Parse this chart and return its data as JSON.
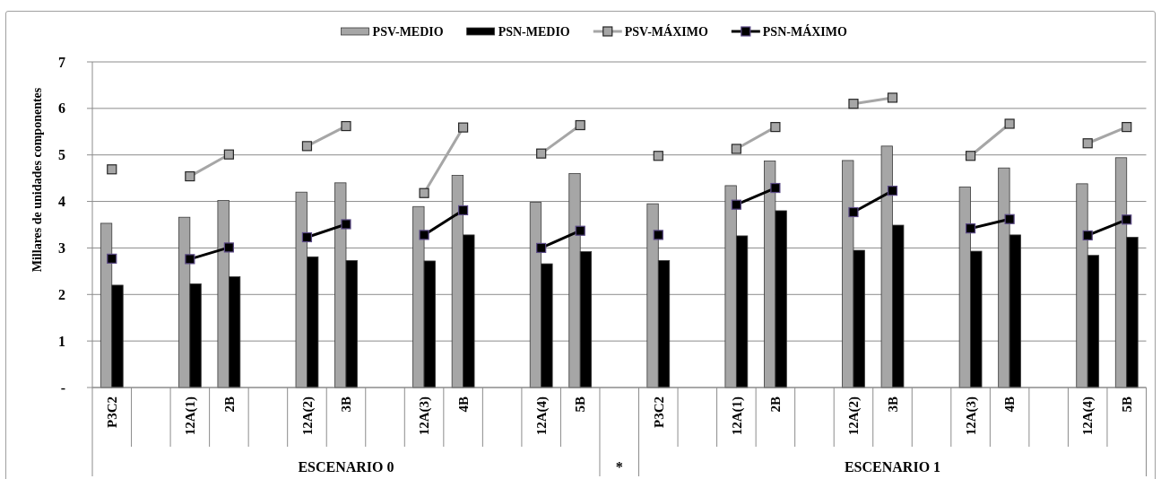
{
  "chart_data": {
    "type": "bar",
    "categories": [
      "P3C2",
      null,
      "12A(1)",
      "2B",
      null,
      "12A(2)",
      "3B",
      null,
      "12A(3)",
      "4B",
      null,
      "12A(4)",
      "5B",
      null,
      "P3C2",
      null,
      "12A(1)",
      "2B",
      null,
      "12A(2)",
      "3B",
      null,
      "12A(3)",
      "4B",
      null,
      "12A(4)",
      "5B"
    ],
    "series": [
      {
        "name": "PSV-MEDIO",
        "color": "#a6a6a6",
        "values": [
          3.53,
          null,
          3.66,
          4.02,
          null,
          4.2,
          4.4,
          null,
          3.89,
          4.56,
          null,
          3.98,
          4.6,
          null,
          3.95,
          null,
          4.34,
          4.87,
          null,
          4.88,
          5.19,
          null,
          4.31,
          4.72,
          null,
          4.38,
          4.94
        ]
      },
      {
        "name": "PSN-MEDIO",
        "color": "#000000",
        "values": [
          2.2,
          null,
          2.23,
          2.38,
          null,
          2.81,
          2.73,
          null,
          2.72,
          3.28,
          null,
          2.66,
          2.92,
          null,
          2.73,
          null,
          3.26,
          3.8,
          null,
          2.95,
          3.49,
          null,
          2.93,
          3.28,
          null,
          2.84,
          3.23
        ]
      },
      {
        "name": "PSV-MÁXIMO",
        "type": "line",
        "color": "#a6a6a6",
        "values": [
          4.69,
          null,
          4.54,
          5.01,
          null,
          5.19,
          5.62,
          null,
          4.18,
          5.59,
          null,
          5.03,
          5.64,
          null,
          4.98,
          null,
          5.13,
          5.6,
          null,
          6.1,
          6.23,
          null,
          4.98,
          5.67,
          null,
          5.25,
          5.6
        ]
      },
      {
        "name": "PSN-MÁXIMO",
        "type": "line",
        "color": "#000000",
        "values": [
          2.77,
          null,
          2.76,
          3.01,
          null,
          3.23,
          3.51,
          null,
          3.28,
          3.81,
          null,
          3.0,
          3.37,
          null,
          3.28,
          null,
          3.93,
          4.29,
          null,
          3.77,
          4.23,
          null,
          3.42,
          3.62,
          null,
          3.27,
          3.61
        ]
      }
    ],
    "ylabel": "Millares de unidades componentes",
    "ylim": [
      0,
      7
    ],
    "yticks": [
      {
        "value": 0,
        "label": "-"
      },
      1,
      2,
      3,
      4,
      5,
      6,
      7
    ],
    "grid": "y",
    "legend": "top",
    "marker": "square",
    "line_style": "solid",
    "annotations": [
      "ESCENARIO 0",
      "*",
      "ESCENARIO 1"
    ]
  }
}
